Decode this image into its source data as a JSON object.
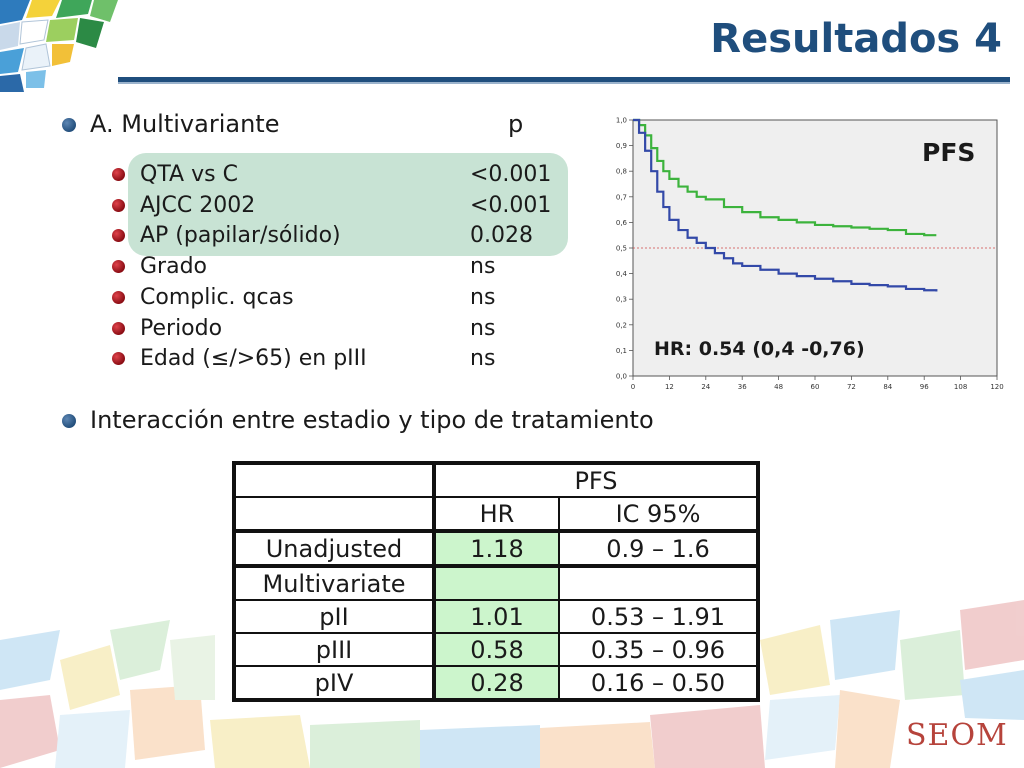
{
  "slide": {
    "title": "Resultados 4",
    "bullet_a": {
      "label": "A. Multivariante",
      "p_header": "p"
    },
    "sub_items": [
      {
        "label": "QTA vs C",
        "p": "<0.001"
      },
      {
        "label": "AJCC 2002",
        "p": "<0.001"
      },
      {
        "label": "AP (papilar/sólido)",
        "p": "0.028"
      },
      {
        "label": "Grado",
        "p": "ns"
      },
      {
        "label": "Complic. qcas",
        "p": "ns"
      },
      {
        "label": "Periodo",
        "p": "ns"
      },
      {
        "label": "Edad (≤/>65) en pIII",
        "p": "ns"
      }
    ],
    "bullet_b": "Interacción entre estadio y tipo de tratamiento",
    "logo_text": "SEOM"
  },
  "chart_data": {
    "type": "line",
    "title": "PFS",
    "annotation": "HR: 0.54 (0,4 -0,76)",
    "xlim": [
      0,
      120
    ],
    "ylim": [
      0,
      1.0
    ],
    "x_ticks": [
      "0",
      "12",
      "24",
      "36",
      "48",
      "60",
      "72",
      "84",
      "96",
      "108",
      "120"
    ],
    "y_ticks": [
      "0,0",
      "0,1",
      "0,2",
      "0,3",
      "0,4",
      "0,5",
      "0,6",
      "0,7",
      "0,8",
      "0,9",
      "1,0"
    ],
    "reference_line_y": 0.5,
    "colors": {
      "green": "#3cb33c",
      "blue": "#3349a8",
      "ref": "#d04848"
    },
    "series": [
      {
        "color": "green",
        "points": [
          [
            0,
            1.0
          ],
          [
            2,
            0.98
          ],
          [
            4,
            0.94
          ],
          [
            6,
            0.89
          ],
          [
            8,
            0.84
          ],
          [
            10,
            0.8
          ],
          [
            12,
            0.77
          ],
          [
            15,
            0.74
          ],
          [
            18,
            0.72
          ],
          [
            21,
            0.7
          ],
          [
            24,
            0.69
          ],
          [
            30,
            0.66
          ],
          [
            36,
            0.64
          ],
          [
            42,
            0.62
          ],
          [
            48,
            0.61
          ],
          [
            54,
            0.6
          ],
          [
            60,
            0.59
          ],
          [
            66,
            0.585
          ],
          [
            72,
            0.58
          ],
          [
            78,
            0.575
          ],
          [
            84,
            0.57
          ],
          [
            90,
            0.555
          ],
          [
            96,
            0.55
          ],
          [
            100,
            0.55
          ]
        ]
      },
      {
        "color": "blue",
        "points": [
          [
            0,
            1.0
          ],
          [
            2,
            0.95
          ],
          [
            4,
            0.88
          ],
          [
            6,
            0.8
          ],
          [
            8,
            0.72
          ],
          [
            10,
            0.66
          ],
          [
            12,
            0.61
          ],
          [
            15,
            0.57
          ],
          [
            18,
            0.54
          ],
          [
            21,
            0.52
          ],
          [
            24,
            0.5
          ],
          [
            27,
            0.48
          ],
          [
            30,
            0.46
          ],
          [
            33,
            0.44
          ],
          [
            36,
            0.43
          ],
          [
            42,
            0.415
          ],
          [
            48,
            0.4
          ],
          [
            54,
            0.39
          ],
          [
            60,
            0.38
          ],
          [
            66,
            0.37
          ],
          [
            72,
            0.36
          ],
          [
            78,
            0.355
          ],
          [
            84,
            0.35
          ],
          [
            90,
            0.34
          ],
          [
            96,
            0.335
          ],
          [
            100,
            0.33
          ]
        ]
      }
    ]
  },
  "table": {
    "header_top": "PFS",
    "col_hr": "HR",
    "col_ci": "IC 95%",
    "unadjusted": {
      "label": "Unadjusted",
      "hr": "1.18",
      "ci": "0.9 – 1.6"
    },
    "multivariate_label": "Multivariate",
    "rows": [
      {
        "label": "pII",
        "hr": "1.01",
        "ci": "0.53 – 1.91"
      },
      {
        "label": "pIII",
        "hr": "0.58",
        "ci": "0.35 – 0.96"
      },
      {
        "label": "pIV",
        "hr": "0.28",
        "ci": "0.16 – 0.50"
      }
    ]
  }
}
